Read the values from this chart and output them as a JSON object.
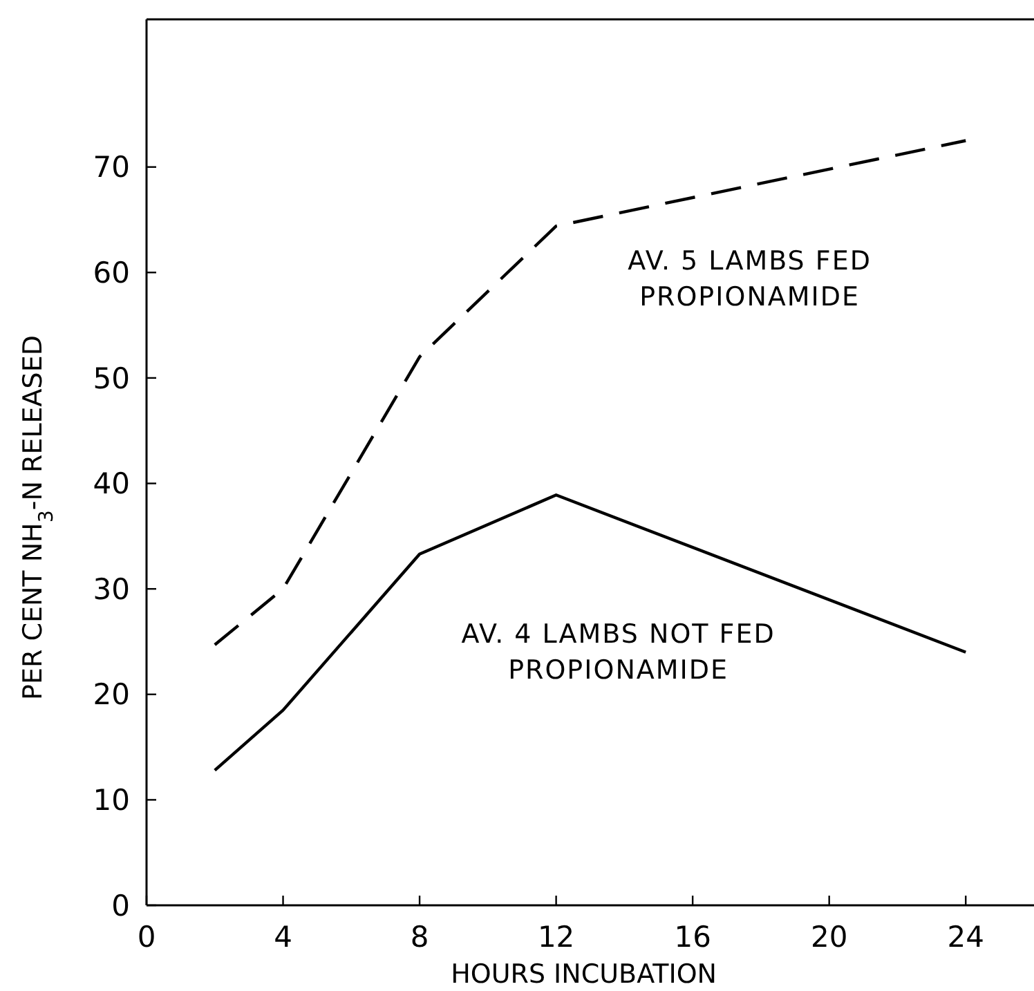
{
  "chart_data": {
    "type": "line",
    "xlabel": "HOURS  INCUBATION",
    "ylabel": "PER CENT NH$_{3}$-N RELEASED",
    "xlim": [
      0,
      26
    ],
    "xticks": [
      0,
      4,
      8,
      12,
      16,
      20,
      24
    ],
    "ylim": [
      0,
      84
    ],
    "yticks": [
      0,
      10,
      20,
      30,
      40,
      50,
      60,
      70
    ],
    "grid": false,
    "marker": "none",
    "series": [
      {
        "name": "AV. 5 LAMBS FED\nPROPIONAMIDE",
        "color": "#000000",
        "line_style": "dashed",
        "x": [
          2,
          4,
          8,
          12,
          24
        ],
        "values": [
          24.7,
          30,
          52,
          64.4,
          72.5
        ]
      },
      {
        "name": "AV. 4 LAMBS NOT FED\nPROPIONAMIDE",
        "color": "#000000",
        "line_style": "solid",
        "x": [
          2,
          4,
          8,
          12,
          24
        ],
        "values": [
          12.8,
          18.5,
          33.3,
          38.9,
          24
        ]
      }
    ]
  }
}
